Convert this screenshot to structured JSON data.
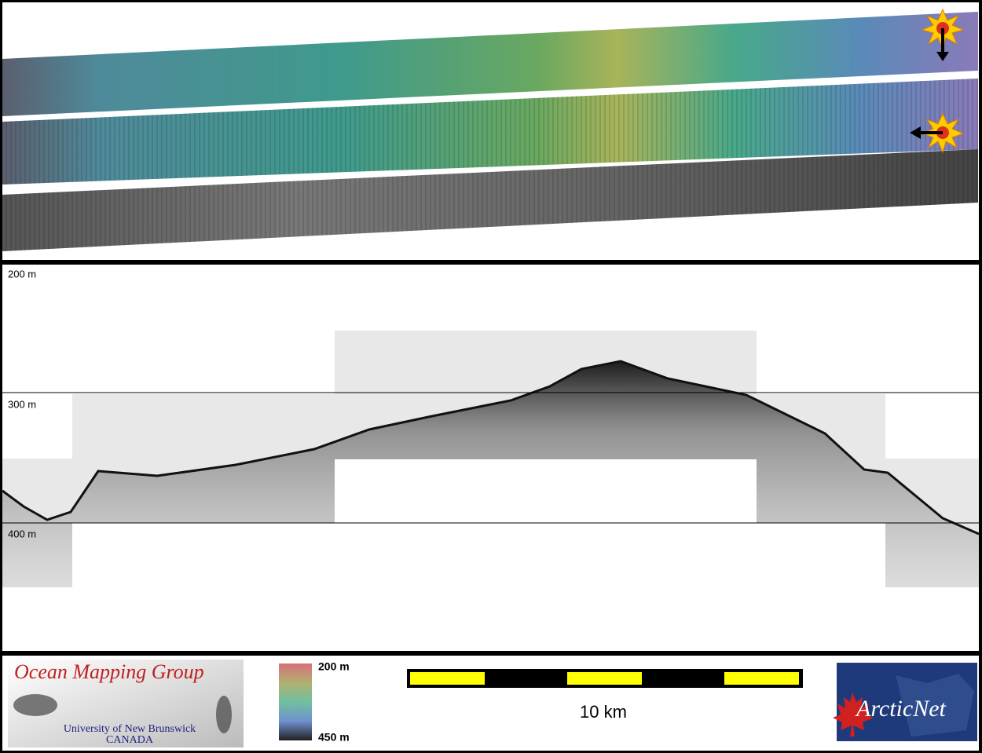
{
  "profile": {
    "depth_labels": [
      "200 m",
      "300 m",
      "400 m"
    ]
  },
  "legend": {
    "top_label": "200 m",
    "bottom_label": "450 m"
  },
  "scale_bar": {
    "label": "10 km"
  },
  "logos": {
    "omg_title": "Ocean Mapping Group",
    "omg_university": "University of New Brunswick",
    "omg_country": "CANADA",
    "arcticnet": "ArcticNet"
  }
}
